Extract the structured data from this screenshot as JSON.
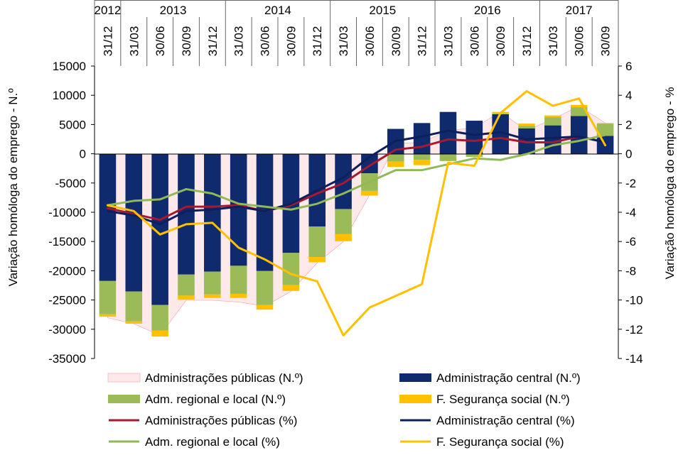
{
  "chart_data": {
    "type": "bar",
    "title": "",
    "ylabel": "Variação homóloga do emprego -  N.º",
    "y2label": "Variação homóloga do emprego - %",
    "ylim": [
      -35000,
      15000
    ],
    "yticks": [
      "15000",
      "10000",
      "5000",
      "0",
      "-5000",
      "-10000",
      "-15000",
      "-20000",
      "-25000",
      "-30000",
      "-35000"
    ],
    "y2lim": [
      -14,
      6
    ],
    "y2ticks": [
      "6",
      "4",
      "2",
      "0",
      "-2",
      "-4",
      "-6",
      "-8",
      "-10",
      "-12",
      "-14"
    ],
    "stacked": true,
    "legend_position": "bottom",
    "years": [
      "2012",
      "2013",
      "2014",
      "2015",
      "2016",
      "2017"
    ],
    "categories": [
      "31/12",
      "31/03",
      "30/06",
      "30/09",
      "31/12",
      "31/03",
      "30/06",
      "30/09",
      "31/12",
      "31/03",
      "30/06",
      "30/09",
      "31/12",
      "31/03",
      "30/06",
      "30/09",
      "31/12",
      "31/03",
      "30/06",
      "30/09"
    ],
    "area_series": {
      "name": "Administrações públicas (N.º)",
      "color": "#fde9ea",
      "values": [
        -28000,
        -29000,
        -31000,
        -25000,
        -25000,
        -25300,
        -26000,
        -23500,
        -18600,
        -15000,
        -7000,
        1800,
        2000,
        4000,
        4500,
        7200,
        4000,
        6000,
        8200,
        5300
      ]
    },
    "bar_series": [
      {
        "name": "Administração central (N.º)",
        "color": "#102a6e",
        "values": [
          -21700,
          -23500,
          -25800,
          -20600,
          -20100,
          -19100,
          -20000,
          -16900,
          -12400,
          -9400,
          -3300,
          4300,
          5300,
          7200,
          5700,
          6800,
          4400,
          4900,
          6500,
          3100
        ]
      },
      {
        "name": "Adm. regional e local (N.º)",
        "color": "#9bbb59",
        "values": [
          -5700,
          -5100,
          -4400,
          -3600,
          -3900,
          -4800,
          -5800,
          -5500,
          -5200,
          -4300,
          -3000,
          -1300,
          -1000,
          -1200,
          -500,
          100,
          400,
          1400,
          1500,
          2100
        ]
      },
      {
        "name": "F. Segurança social  (N.º)",
        "color": "#ffc000",
        "values": [
          -400,
          -400,
          -1000,
          -700,
          -600,
          -700,
          -800,
          -1000,
          -900,
          -1200,
          -800,
          -900,
          -900,
          0,
          0,
          300,
          400,
          300,
          400,
          100
        ]
      }
    ],
    "line_series": [
      {
        "name": "Administrações públicas (%)",
        "color": "#a6192e",
        "values": [
          -3.7,
          -4.1,
          -4.5,
          -3.6,
          -3.6,
          -3.5,
          -3.9,
          -3.5,
          -2.7,
          -2.0,
          -0.8,
          0.3,
          0.5,
          1.0,
          0.9,
          1.1,
          0.8,
          0.8,
          1.2,
          0.8
        ]
      },
      {
        "name": "Administração central  (%)",
        "color": "#0d1f5c",
        "values": [
          -3.9,
          -4.2,
          -4.8,
          -3.9,
          -3.8,
          -3.6,
          -3.9,
          -3.4,
          -2.5,
          -1.6,
          -0.2,
          0.9,
          1.2,
          1.6,
          1.3,
          1.5,
          1.0,
          1.1,
          1.2,
          0.8
        ]
      },
      {
        "name": "Adm. regional e local (%)",
        "color": "#92b957",
        "values": [
          -3.5,
          -3.2,
          -3.1,
          -2.4,
          -2.7,
          -3.4,
          -3.6,
          -3.8,
          -3.4,
          -2.7,
          -1.9,
          -1.1,
          -1.1,
          -0.7,
          -0.3,
          -0.4,
          0.0,
          0.6,
          0.9,
          1.3
        ]
      },
      {
        "name": "F. Segurança social  (%)",
        "color": "#ffc000",
        "values": [
          -3.5,
          -3.9,
          -5.5,
          -4.8,
          -4.7,
          -6.4,
          -7.2,
          -8.2,
          -8.7,
          -12.4,
          -10.5,
          -9.7,
          -8.9,
          -0.6,
          -0.8,
          2.8,
          4.3,
          3.3,
          3.8,
          0.6
        ]
      }
    ],
    "legend": [
      {
        "label": "Administrações públicas (N.º)",
        "kind": "area",
        "color": "#fde9ea"
      },
      {
        "label": "Administração central (N.º)",
        "kind": "bar",
        "color": "#102a6e"
      },
      {
        "label": "Adm. regional e local (N.º)",
        "kind": "bar",
        "color": "#9bbb59"
      },
      {
        "label": "F. Segurança social  (N.º)",
        "kind": "bar",
        "color": "#ffc000"
      },
      {
        "label": "Administrações públicas (%)",
        "kind": "line",
        "color": "#a6192e"
      },
      {
        "label": "Administração central  (%)",
        "kind": "line",
        "color": "#0d1f5c"
      },
      {
        "label": "Adm. regional e local (%)",
        "kind": "line",
        "color": "#92b957"
      },
      {
        "label": "F. Segurança social  (%)",
        "kind": "line",
        "color": "#ffc000"
      }
    ]
  }
}
